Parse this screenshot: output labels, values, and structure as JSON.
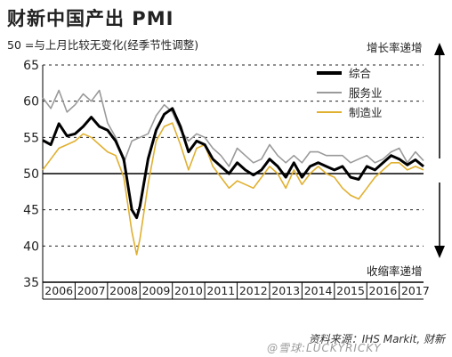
{
  "title": "财新中国产出 PMI",
  "subtitle": "50 =与上月比较无变化(经季节性调整)",
  "up_label": "增长率递增",
  "down_label": "收缩率递增",
  "source": "资料来源：IHS Markit, 财新",
  "watermark": "@雪球:LUCKYRICKY",
  "colors": {
    "composite": "#000000",
    "services": "#9a9a9a",
    "manufacturing": "#e0b030"
  },
  "chart_data": {
    "type": "line",
    "ylim": [
      35,
      65
    ],
    "yticks": [
      35,
      40,
      45,
      50,
      55,
      60,
      65
    ],
    "xlim": [
      2006.0,
      2017.75
    ],
    "xticks": [
      "2006",
      "2007",
      "2008",
      "2009",
      "2010",
      "2011",
      "2012",
      "2013",
      "2014",
      "2015",
      "2016",
      "2017"
    ],
    "reference_line": 50,
    "series": [
      {
        "name": "综合",
        "values": [
          [
            2006.0,
            54.6
          ],
          [
            2006.25,
            54.0
          ],
          [
            2006.5,
            56.9
          ],
          [
            2006.75,
            55.2
          ],
          [
            2007.0,
            55.5
          ],
          [
            2007.25,
            56.5
          ],
          [
            2007.5,
            57.8
          ],
          [
            2007.75,
            56.5
          ],
          [
            2008.0,
            56.0
          ],
          [
            2008.25,
            54.5
          ],
          [
            2008.5,
            52.0
          ],
          [
            2008.75,
            45.0
          ],
          [
            2008.9,
            43.9
          ],
          [
            2009.0,
            45.5
          ],
          [
            2009.25,
            52.0
          ],
          [
            2009.5,
            56.0
          ],
          [
            2009.75,
            58.2
          ],
          [
            2010.0,
            59.0
          ],
          [
            2010.25,
            56.5
          ],
          [
            2010.5,
            53.0
          ],
          [
            2010.75,
            54.5
          ],
          [
            2011.0,
            54.0
          ],
          [
            2011.25,
            52.0
          ],
          [
            2011.5,
            51.0
          ],
          [
            2011.75,
            50.0
          ],
          [
            2012.0,
            51.5
          ],
          [
            2012.25,
            50.5
          ],
          [
            2012.5,
            49.8
          ],
          [
            2012.75,
            50.5
          ],
          [
            2013.0,
            52.0
          ],
          [
            2013.25,
            51.0
          ],
          [
            2013.5,
            49.5
          ],
          [
            2013.75,
            51.5
          ],
          [
            2014.0,
            49.5
          ],
          [
            2014.25,
            51.0
          ],
          [
            2014.5,
            51.5
          ],
          [
            2014.75,
            51.0
          ],
          [
            2015.0,
            50.5
          ],
          [
            2015.25,
            51.0
          ],
          [
            2015.5,
            49.5
          ],
          [
            2015.75,
            49.2
          ],
          [
            2016.0,
            51.0
          ],
          [
            2016.25,
            50.5
          ],
          [
            2016.5,
            51.5
          ],
          [
            2016.75,
            52.5
          ],
          [
            2017.0,
            52.0
          ],
          [
            2017.25,
            51.2
          ],
          [
            2017.5,
            51.9
          ],
          [
            2017.75,
            51.0
          ]
        ]
      },
      {
        "name": "服务业",
        "values": [
          [
            2006.0,
            60.5
          ],
          [
            2006.25,
            59.0
          ],
          [
            2006.5,
            61.5
          ],
          [
            2006.75,
            58.5
          ],
          [
            2007.0,
            59.5
          ],
          [
            2007.25,
            61.0
          ],
          [
            2007.5,
            60.0
          ],
          [
            2007.75,
            61.5
          ],
          [
            2008.0,
            57.0
          ],
          [
            2008.25,
            55.0
          ],
          [
            2008.5,
            51.5
          ],
          [
            2008.75,
            54.5
          ],
          [
            2009.0,
            55.0
          ],
          [
            2009.25,
            55.5
          ],
          [
            2009.5,
            58.0
          ],
          [
            2009.75,
            59.5
          ],
          [
            2010.0,
            58.5
          ],
          [
            2010.25,
            56.0
          ],
          [
            2010.5,
            54.5
          ],
          [
            2010.75,
            55.5
          ],
          [
            2011.0,
            55.0
          ],
          [
            2011.25,
            53.5
          ],
          [
            2011.5,
            52.5
          ],
          [
            2011.75,
            51.0
          ],
          [
            2012.0,
            53.5
          ],
          [
            2012.25,
            52.5
          ],
          [
            2012.5,
            51.5
          ],
          [
            2012.75,
            52.0
          ],
          [
            2013.0,
            54.0
          ],
          [
            2013.25,
            52.5
          ],
          [
            2013.5,
            51.5
          ],
          [
            2013.75,
            52.5
          ],
          [
            2014.0,
            51.5
          ],
          [
            2014.25,
            53.0
          ],
          [
            2014.5,
            53.0
          ],
          [
            2014.75,
            52.5
          ],
          [
            2015.0,
            52.5
          ],
          [
            2015.25,
            52.5
          ],
          [
            2015.5,
            51.5
          ],
          [
            2015.75,
            52.0
          ],
          [
            2016.0,
            52.5
          ],
          [
            2016.25,
            51.5
          ],
          [
            2016.5,
            52.0
          ],
          [
            2016.75,
            53.0
          ],
          [
            2017.0,
            53.5
          ],
          [
            2017.25,
            51.5
          ],
          [
            2017.5,
            53.0
          ],
          [
            2017.75,
            51.8
          ]
        ]
      },
      {
        "name": "制造业",
        "values": [
          [
            2006.0,
            50.5
          ],
          [
            2006.25,
            52.0
          ],
          [
            2006.5,
            53.5
          ],
          [
            2006.75,
            54.0
          ],
          [
            2007.0,
            54.5
          ],
          [
            2007.25,
            55.5
          ],
          [
            2007.5,
            55.0
          ],
          [
            2007.75,
            54.0
          ],
          [
            2008.0,
            53.0
          ],
          [
            2008.25,
            52.5
          ],
          [
            2008.5,
            49.5
          ],
          [
            2008.75,
            42.0
          ],
          [
            2008.9,
            38.8
          ],
          [
            2009.0,
            41.0
          ],
          [
            2009.25,
            48.5
          ],
          [
            2009.5,
            54.5
          ],
          [
            2009.75,
            56.5
          ],
          [
            2010.0,
            57.0
          ],
          [
            2010.25,
            54.0
          ],
          [
            2010.5,
            50.5
          ],
          [
            2010.75,
            53.5
          ],
          [
            2011.0,
            54.0
          ],
          [
            2011.25,
            51.0
          ],
          [
            2011.5,
            49.5
          ],
          [
            2011.75,
            48.0
          ],
          [
            2012.0,
            49.0
          ],
          [
            2012.25,
            48.5
          ],
          [
            2012.5,
            48.0
          ],
          [
            2012.75,
            49.5
          ],
          [
            2013.0,
            51.0
          ],
          [
            2013.25,
            50.0
          ],
          [
            2013.5,
            48.0
          ],
          [
            2013.75,
            50.5
          ],
          [
            2014.0,
            48.5
          ],
          [
            2014.25,
            50.0
          ],
          [
            2014.5,
            51.0
          ],
          [
            2014.75,
            50.0
          ],
          [
            2015.0,
            49.5
          ],
          [
            2015.25,
            48.0
          ],
          [
            2015.5,
            47.0
          ],
          [
            2015.75,
            46.5
          ],
          [
            2016.0,
            48.0
          ],
          [
            2016.25,
            49.5
          ],
          [
            2016.5,
            50.5
          ],
          [
            2016.75,
            51.5
          ],
          [
            2017.0,
            51.5
          ],
          [
            2017.25,
            50.5
          ],
          [
            2017.5,
            51.0
          ],
          [
            2017.75,
            50.5
          ]
        ]
      }
    ]
  }
}
